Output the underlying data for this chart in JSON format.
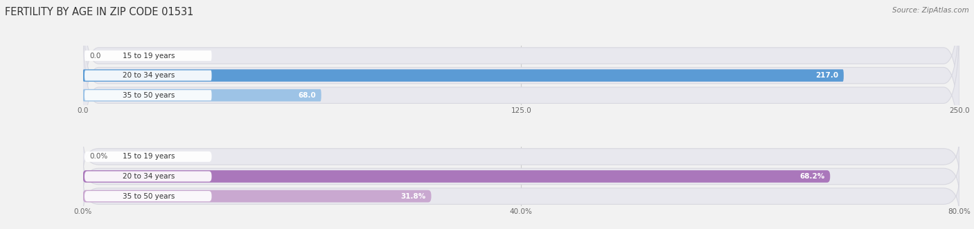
{
  "title": "FERTILITY BY AGE IN ZIP CODE 01531",
  "source": "Source: ZipAtlas.com",
  "top_chart": {
    "categories": [
      "15 to 19 years",
      "20 to 34 years",
      "35 to 50 years"
    ],
    "values": [
      0.0,
      217.0,
      68.0
    ],
    "xlim": [
      0,
      250
    ],
    "xticks": [
      0.0,
      125.0,
      250.0
    ],
    "xtick_labels": [
      "0.0",
      "125.0",
      "250.0"
    ],
    "bar_color_strong": "#5B9BD5",
    "bar_color_light": "#9DC3E6",
    "value_labels": [
      "0.0",
      "217.0",
      "68.0"
    ],
    "value_label_threshold": 30
  },
  "bottom_chart": {
    "categories": [
      "15 to 19 years",
      "20 to 34 years",
      "35 to 50 years"
    ],
    "values": [
      0.0,
      68.2,
      31.8
    ],
    "xlim": [
      0,
      80
    ],
    "xticks": [
      0.0,
      40.0,
      80.0
    ],
    "xtick_labels": [
      "0.0%",
      "40.0%",
      "80.0%"
    ],
    "bar_color_strong": "#AA77BB",
    "bar_color_light": "#C9A8D0",
    "value_labels": [
      "0.0%",
      "68.2%",
      "31.8%"
    ],
    "value_label_threshold": 10
  },
  "bg_color": "#F2F2F2",
  "row_bg_color": "#E8E8EE",
  "row_border_color": "#D8D8E0",
  "label_pill_color": "#FFFFFF",
  "title_fontsize": 10.5,
  "label_fontsize": 7.5,
  "tick_fontsize": 7.5,
  "source_fontsize": 7.5
}
